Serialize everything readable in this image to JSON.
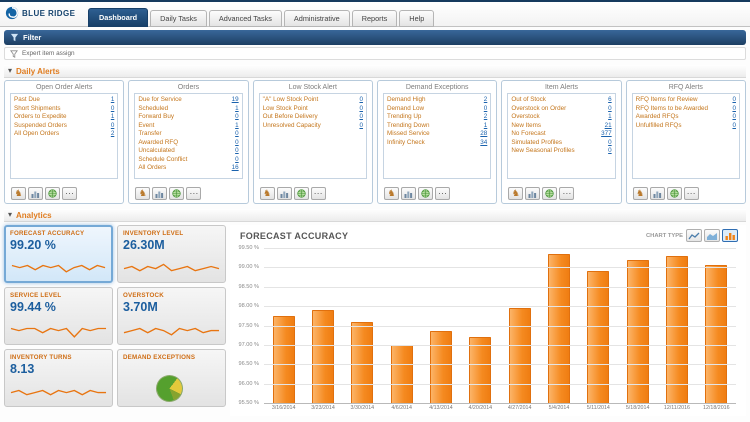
{
  "header": {
    "logo_text": "BLUE RIDGE",
    "tabs": [
      {
        "label": "Dashboard",
        "active": true
      },
      {
        "label": "Daily Tasks",
        "active": false
      },
      {
        "label": "Advanced Tasks",
        "active": false
      },
      {
        "label": "Administrative",
        "active": false
      },
      {
        "label": "Reports",
        "active": false
      },
      {
        "label": "Help",
        "active": false
      }
    ]
  },
  "filter_bar": {
    "label": "Filter",
    "icon": "filter-funnel-icon"
  },
  "subfilter": {
    "label": "Expert item assign",
    "icon": "subfilter-funnel-icon"
  },
  "sections": {
    "daily_alerts": "Daily Alerts",
    "analytics": "Analytics"
  },
  "panel_icons": [
    "horse-icon",
    "analysis-chart-icon",
    "globe-icon",
    "more-icon"
  ],
  "alert_panels": [
    {
      "title": "Open Order Alerts",
      "rows": [
        [
          "Past Due",
          "1"
        ],
        [
          "Short Shipments",
          "0"
        ],
        [
          "Orders to Expedite",
          "1"
        ],
        [
          "Suspended Orders",
          "0"
        ],
        [
          "All Open Orders",
          "2"
        ]
      ]
    },
    {
      "title": "Orders",
      "rows": [
        [
          "Due for Service",
          "19"
        ],
        [
          "Scheduled",
          "1"
        ],
        [
          "Forward Buy",
          "0"
        ],
        [
          "Event",
          "1"
        ],
        [
          "Transfer",
          "0"
        ],
        [
          "Awarded RFQ",
          "0"
        ],
        [
          "Uncalculated",
          "0"
        ],
        [
          "Schedule Conflict",
          "0"
        ],
        [
          "All Orders",
          "16"
        ]
      ]
    },
    {
      "title": "Low Stock Alert",
      "rows": [
        [
          "\"A\" Low Stock Point",
          "0"
        ],
        [
          "Low Stock Point",
          "0"
        ],
        [
          "Out Before Delivery",
          "0"
        ],
        [
          "Unresolved Capacity",
          "0"
        ]
      ]
    },
    {
      "title": "Demand Exceptions",
      "rows": [
        [
          "Demand High",
          "2"
        ],
        [
          "Demand Low",
          "0"
        ],
        [
          "Trending Up",
          "2"
        ],
        [
          "Trending Down",
          "1"
        ],
        [
          "Missed Service",
          "28"
        ],
        [
          "Infinity Check",
          "34"
        ]
      ]
    },
    {
      "title": "Item Alerts",
      "rows": [
        [
          "Out of Stock",
          "6"
        ],
        [
          "Overstock on Order",
          "0"
        ],
        [
          "Overstock",
          "1"
        ],
        [
          "New Items",
          "21"
        ],
        [
          "No Forecast",
          "377"
        ],
        [
          "Simulated Profiles",
          "0"
        ],
        [
          "New Seasonal Profiles",
          "0"
        ]
      ]
    },
    {
      "title": "RFQ Alerts",
      "rows": [
        [
          "RFQ Items for Review",
          "0"
        ],
        [
          "RFQ Items to be Awarded",
          "0"
        ],
        [
          "Awarded RFQs",
          "0"
        ],
        [
          "Unfulfilled RFQs",
          "0"
        ]
      ]
    }
  ],
  "kpi_tiles": [
    {
      "label": "FORECAST ACCURACY",
      "value": "99.20 %",
      "selected": true,
      "trend": [
        6,
        5,
        6,
        4,
        6,
        5,
        6,
        3,
        5,
        6,
        4,
        6,
        5
      ]
    },
    {
      "label": "INVENTORY LEVEL",
      "value": "26.30M",
      "selected": false,
      "trend": [
        5,
        6,
        4,
        6,
        5,
        7,
        4,
        5,
        6,
        4,
        5,
        6,
        5
      ]
    },
    {
      "label": "SERVICE LEVEL",
      "value": "99.44 %",
      "selected": false,
      "trend": [
        6,
        5,
        6,
        6,
        4,
        6,
        5,
        6,
        2,
        6,
        5,
        6,
        6
      ]
    },
    {
      "label": "OVERSTOCK",
      "value": "3.70M",
      "selected": false,
      "trend": [
        4,
        5,
        6,
        4,
        6,
        5,
        3,
        6,
        5,
        6,
        4,
        5,
        5
      ]
    },
    {
      "label": "INVENTORY TURNS",
      "value": "8.13",
      "selected": false,
      "trend": [
        5,
        6,
        4,
        5,
        6,
        4,
        6,
        5,
        6,
        4,
        6,
        5,
        5
      ]
    },
    {
      "label": "DEMAND EXCEPTIONS",
      "value": "",
      "selected": false,
      "pie": [
        {
          "value": 66,
          "color": "#55a02e"
        },
        {
          "value": 22,
          "color": "#e2c93b"
        },
        {
          "value": 12,
          "color": "#86a32f"
        }
      ]
    }
  ],
  "chart": {
    "title": "FORECAST ACCURACY",
    "chart_type_label": "CHART TYPE",
    "type_buttons": [
      {
        "icon": "line-chart-icon",
        "active": false
      },
      {
        "icon": "area-chart-icon",
        "active": false
      },
      {
        "icon": "bar-chart-icon",
        "active": true
      }
    ]
  },
  "chart_data": {
    "type": "bar",
    "title": "FORECAST ACCURACY",
    "categories": [
      "3/16/2014",
      "3/23/2014",
      "3/30/2014",
      "4/6/2014",
      "4/13/2014",
      "4/20/2014",
      "4/27/2014",
      "5/4/2014",
      "5/11/2014",
      "5/18/2014",
      "12/11/2016",
      "12/18/2016"
    ],
    "values": [
      97.75,
      97.9,
      97.6,
      97.0,
      97.35,
      97.2,
      97.95,
      99.35,
      98.9,
      99.2,
      99.3,
      99.05
    ],
    "xlabel": "",
    "ylabel": "",
    "ylim": [
      95.5,
      99.5
    ],
    "ytick_labels": [
      "99.50 %",
      "99.00 %",
      "98.50 %",
      "98.00 %",
      "97.50 %",
      "97.00 %",
      "96.50 %",
      "96.00 %",
      "95.50 %"
    ],
    "bar_color": "#f5831f",
    "grid": true,
    "legend": "none"
  },
  "colors": {
    "accent_orange": "#e07c1f",
    "link_blue": "#1a62ad",
    "navy": "#1d3f63",
    "value_blue": "#1c5e9e",
    "selected_tile_border": "#75a9d6"
  }
}
